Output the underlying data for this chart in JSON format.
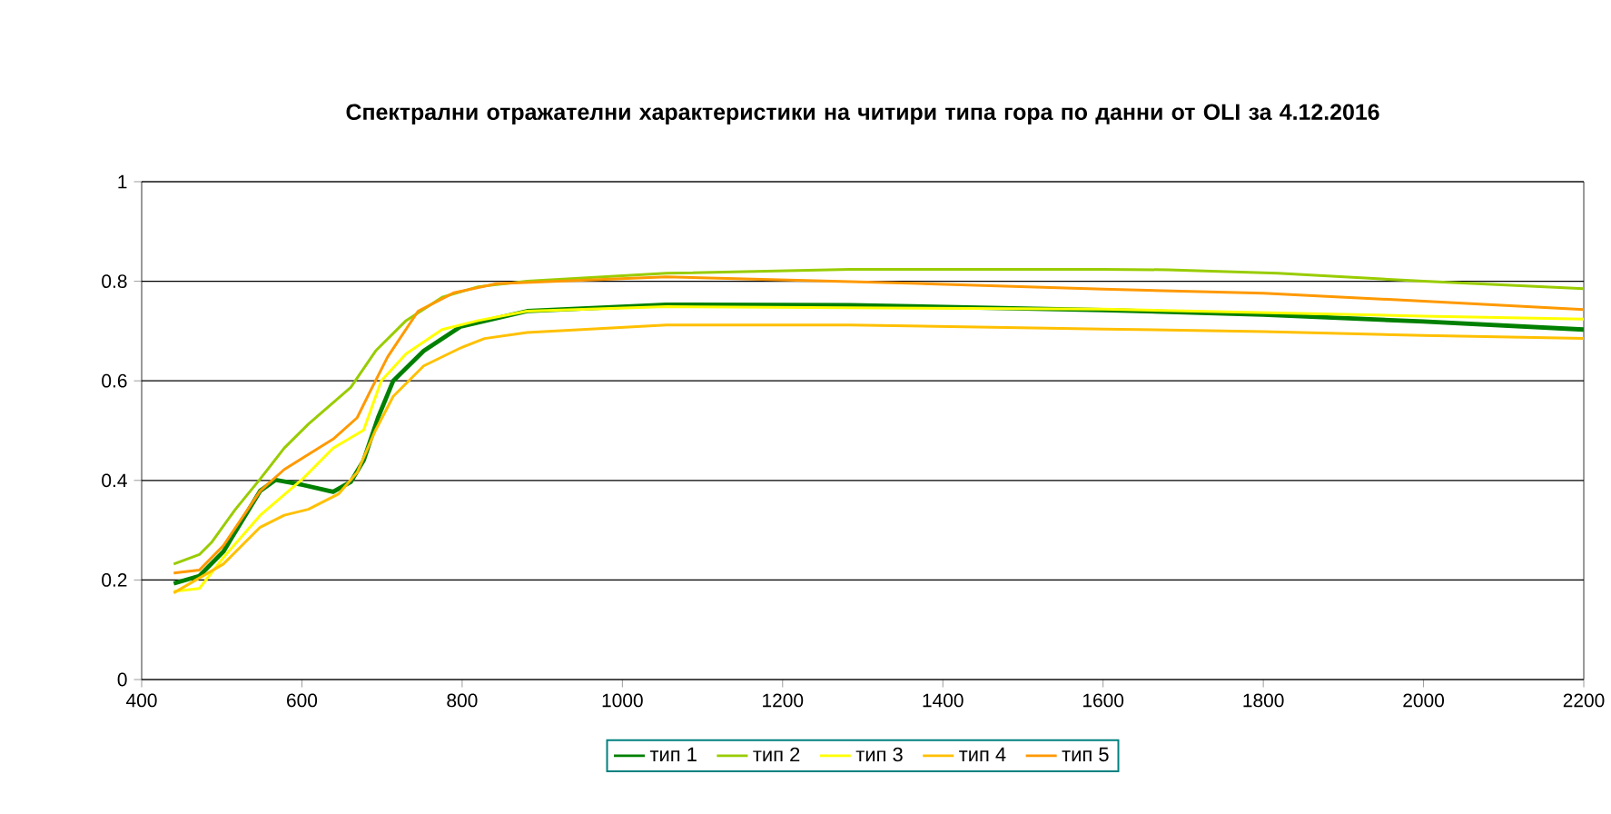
{
  "chart_data": {
    "type": "line",
    "title": "Спектрални отражателни характеристики на читири типа гора по данни от OLI за 4.12.2016",
    "xlim": [
      400,
      2200
    ],
    "xticks": [
      400,
      600,
      800,
      1000,
      1200,
      1400,
      1600,
      1800,
      2000,
      2200
    ],
    "ylim": [
      0,
      1
    ],
    "yticks": [
      0,
      0.2,
      0.4,
      0.6,
      0.8,
      1
    ],
    "grid": "y",
    "legend": "bottom",
    "marker": "none",
    "line_style": "solid",
    "series": [
      {
        "name": "тип 1",
        "color": "#008000",
        "x": [
          440,
          472,
          502,
          548,
          567,
          601,
          639,
          661,
          677,
          695,
          714,
          752,
          798,
          881,
          1055,
          1284,
          1600,
          1800,
          2000,
          2200
        ],
        "values": [
          0.193,
          0.208,
          0.257,
          0.379,
          0.401,
          0.391,
          0.377,
          0.397,
          0.44,
          0.526,
          0.6,
          0.66,
          0.709,
          0.74,
          0.753,
          0.752,
          0.742,
          0.733,
          0.719,
          0.703
        ]
      },
      {
        "name": "тип 2",
        "color": "#99cc00",
        "x": [
          440,
          472,
          487,
          517,
          548,
          578,
          608,
          661,
          692,
          730,
          775,
          820,
          881,
          1055,
          1284,
          1600,
          1681,
          1818,
          2000,
          2200
        ],
        "values": [
          0.232,
          0.251,
          0.275,
          0.342,
          0.403,
          0.465,
          0.513,
          0.587,
          0.66,
          0.721,
          0.768,
          0.789,
          0.8,
          0.816,
          0.824,
          0.824,
          0.823,
          0.816,
          0.8,
          0.785
        ]
      },
      {
        "name": "тип 3",
        "color": "#ffff00",
        "x": [
          440,
          472,
          502,
          548,
          601,
          639,
          677,
          699,
          730,
          775,
          820,
          881,
          1055,
          1600,
          2000,
          2200
        ],
        "values": [
          0.177,
          0.183,
          0.245,
          0.33,
          0.403,
          0.465,
          0.501,
          0.6,
          0.654,
          0.703,
          0.721,
          0.74,
          0.749,
          0.744,
          0.73,
          0.724
        ]
      },
      {
        "name": "тип 4",
        "color": "#ffc000",
        "x": [
          440,
          502,
          548,
          578,
          608,
          646,
          669,
          692,
          714,
          752,
          798,
          828,
          881,
          1055,
          1284,
          1600,
          1800,
          2000,
          2200
        ],
        "values": [
          0.174,
          0.232,
          0.306,
          0.33,
          0.342,
          0.373,
          0.416,
          0.501,
          0.569,
          0.63,
          0.666,
          0.685,
          0.697,
          0.712,
          0.712,
          0.704,
          0.699,
          0.691,
          0.685
        ]
      },
      {
        "name": "тип 5",
        "color": "#ff9900",
        "x": [
          440,
          472,
          502,
          548,
          578,
          608,
          639,
          669,
          684,
          707,
          745,
          790,
          843,
          1055,
          1360,
          1600,
          1800,
          2000,
          2200
        ],
        "values": [
          0.214,
          0.22,
          0.269,
          0.379,
          0.422,
          0.452,
          0.483,
          0.526,
          0.575,
          0.648,
          0.74,
          0.777,
          0.795,
          0.809,
          0.796,
          0.784,
          0.776,
          0.76,
          0.743
        ]
      }
    ]
  }
}
